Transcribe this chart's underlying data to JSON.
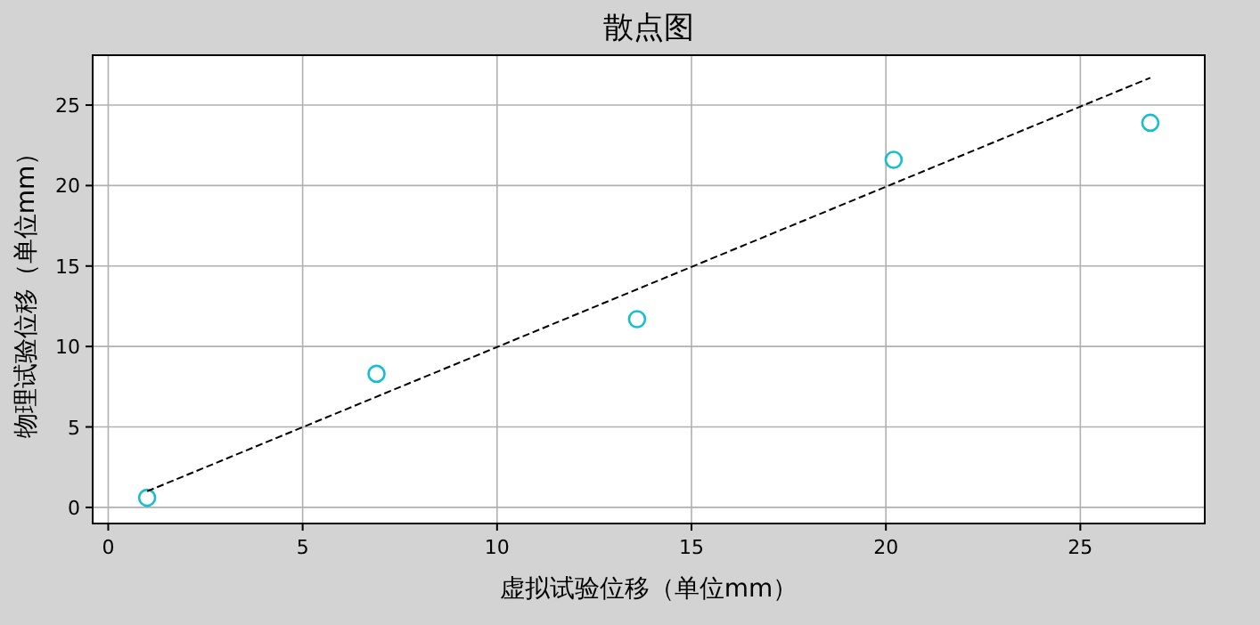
{
  "chart_data": {
    "type": "scatter",
    "title": "散点图",
    "xlabel": "虚拟试验位移（单位mm）",
    "ylabel": "物理试验位移（单位mm）",
    "xlim": [
      -0.4,
      28.2
    ],
    "ylim": [
      -1.0,
      28.1
    ],
    "xticks": [
      0,
      5,
      10,
      15,
      20,
      25
    ],
    "yticks": [
      0,
      5,
      10,
      15,
      20,
      25
    ],
    "grid": true,
    "series": [
      {
        "color": "#17becf",
        "x": [
          1.0,
          6.9,
          13.6,
          20.2,
          26.8
        ],
        "values": [
          0.6,
          8.3,
          11.7,
          21.6,
          23.9
        ]
      },
      {
        "type": "line",
        "color": "#000000",
        "line_style": "dashed",
        "marker": "none",
        "x": [
          1.0,
          26.8
        ],
        "values": [
          1.0,
          26.7
        ]
      }
    ]
  }
}
